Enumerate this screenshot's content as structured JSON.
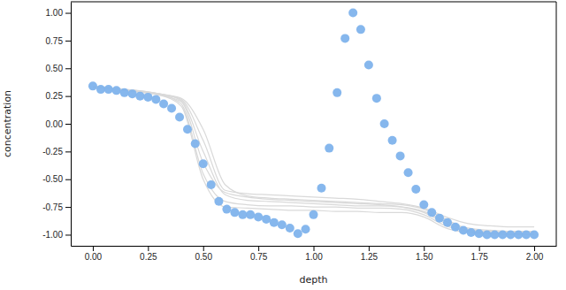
{
  "chart_data": {
    "type": "scatter",
    "x_label": "depth",
    "y_label": "concentration",
    "xlim": [
      -0.1,
      2.1
    ],
    "ylim": [
      -1.1,
      1.1
    ],
    "xticks": [
      {
        "value": 0,
        "label": "0.00"
      },
      {
        "value": 0.25,
        "label": "0.25"
      },
      {
        "value": 0.5,
        "label": "0.50"
      },
      {
        "value": 0.75,
        "label": "0.75"
      },
      {
        "value": 1,
        "label": "1.00"
      },
      {
        "value": 1.25,
        "label": "1.25"
      },
      {
        "value": 1.5,
        "label": "1.50"
      },
      {
        "value": 1.75,
        "label": "1.75"
      },
      {
        "value": 2,
        "label": "2.00"
      }
    ],
    "yticks": [
      {
        "value": -1,
        "label": "-1.00"
      },
      {
        "value": -0.75,
        "label": "-0.75"
      },
      {
        "value": -0.5,
        "label": "-0.50"
      },
      {
        "value": -0.25,
        "label": "-0.25"
      },
      {
        "value": 0,
        "label": "0.00"
      },
      {
        "value": 0.25,
        "label": "0.25"
      },
      {
        "value": 0.5,
        "label": "0.50"
      },
      {
        "value": 0.75,
        "label": "0.75"
      },
      {
        "value": 1,
        "label": "1.00"
      }
    ],
    "grid": false,
    "series": [
      {
        "type": "line",
        "line_style": "solid",
        "color": "#d9d9d9",
        "x": [
          0,
          0.1,
          0.2,
          0.3,
          0.4,
          0.5,
          0.6,
          0.7,
          0.8,
          0.9,
          1.0,
          1.1,
          1.2,
          1.3,
          1.4,
          1.5,
          1.6,
          1.7,
          1.8,
          1.9,
          2.0
        ],
        "values": [
          0.33,
          0.31,
          0.29,
          0.26,
          0.2,
          -0.35,
          -0.62,
          -0.66,
          -0.68,
          -0.69,
          -0.7,
          -0.71,
          -0.72,
          -0.73,
          -0.75,
          -0.8,
          -0.9,
          -0.96,
          -0.98,
          -0.99,
          -1.0
        ]
      },
      {
        "type": "line",
        "line_style": "solid",
        "color": "#d9d9d9",
        "x": [
          0,
          0.1,
          0.2,
          0.3,
          0.4,
          0.5,
          0.6,
          0.7,
          0.8,
          0.9,
          1.0,
          1.1,
          1.2,
          1.3,
          1.4,
          1.5,
          1.6,
          1.7,
          1.8,
          1.9,
          2.0
        ],
        "values": [
          0.33,
          0.31,
          0.29,
          0.27,
          0.23,
          -0.05,
          -0.55,
          -0.65,
          -0.67,
          -0.68,
          -0.69,
          -0.7,
          -0.71,
          -0.72,
          -0.73,
          -0.77,
          -0.86,
          -0.95,
          -0.97,
          -0.98,
          -0.98
        ]
      },
      {
        "type": "line",
        "line_style": "solid",
        "color": "#d9d9d9",
        "x": [
          0,
          0.1,
          0.2,
          0.3,
          0.4,
          0.5,
          0.6,
          0.7,
          0.8,
          0.9,
          1.0,
          1.1,
          1.2,
          1.3,
          1.4,
          1.5,
          1.6,
          1.7,
          1.8,
          1.9,
          2.0
        ],
        "values": [
          0.34,
          0.32,
          0.3,
          0.27,
          0.18,
          -0.45,
          -0.7,
          -0.73,
          -0.74,
          -0.74,
          -0.75,
          -0.75,
          -0.76,
          -0.76,
          -0.77,
          -0.82,
          -0.92,
          -0.97,
          -0.99,
          -1.0,
          -1.0
        ]
      },
      {
        "type": "line",
        "line_style": "solid",
        "color": "#d9d9d9",
        "x": [
          0,
          0.1,
          0.2,
          0.3,
          0.4,
          0.5,
          0.6,
          0.7,
          0.8,
          0.9,
          1.0,
          1.1,
          1.2,
          1.3,
          1.4,
          1.5,
          1.6,
          1.7,
          1.8,
          1.9,
          2.0
        ],
        "values": [
          0.33,
          0.31,
          0.29,
          0.27,
          0.22,
          -0.15,
          -0.6,
          -0.63,
          -0.64,
          -0.65,
          -0.66,
          -0.67,
          -0.68,
          -0.7,
          -0.72,
          -0.76,
          -0.84,
          -0.9,
          -0.92,
          -0.93,
          -0.93
        ]
      },
      {
        "type": "line",
        "line_style": "solid",
        "color": "#d9d9d9",
        "x": [
          0,
          0.1,
          0.2,
          0.3,
          0.4,
          0.5,
          0.6,
          0.7,
          0.8,
          0.9,
          1.0,
          1.1,
          1.2,
          1.3,
          1.4,
          1.5,
          1.6,
          1.7,
          1.8,
          1.9,
          2.0
        ],
        "values": [
          0.34,
          0.32,
          0.29,
          0.26,
          0.16,
          -0.5,
          -0.75,
          -0.76,
          -0.77,
          -0.78,
          -0.78,
          -0.79,
          -0.79,
          -0.8,
          -0.8,
          -0.84,
          -0.94,
          -0.98,
          -0.99,
          -1.0,
          -1.0
        ]
      },
      {
        "type": "line",
        "line_style": "solid",
        "color": "#d9d9d9",
        "x": [
          0,
          0.1,
          0.2,
          0.3,
          0.4,
          0.5,
          0.6,
          0.7,
          0.8,
          0.9,
          1.0,
          1.1,
          1.2,
          1.3,
          1.4,
          1.5,
          1.6,
          1.7,
          1.8,
          1.9,
          2.0
        ],
        "values": [
          0.33,
          0.31,
          0.3,
          0.27,
          0.21,
          -0.25,
          -0.64,
          -0.69,
          -0.7,
          -0.71,
          -0.72,
          -0.73,
          -0.74,
          -0.74,
          -0.75,
          -0.79,
          -0.88,
          -0.94,
          -0.96,
          -0.97,
          -0.97
        ]
      },
      {
        "type": "scatter",
        "marker": "circle",
        "color": "#7fb3ec",
        "x": [
          0,
          0.036,
          0.071,
          0.107,
          0.143,
          0.179,
          0.214,
          0.25,
          0.286,
          0.321,
          0.357,
          0.393,
          0.429,
          0.464,
          0.5,
          0.536,
          0.571,
          0.607,
          0.643,
          0.679,
          0.714,
          0.75,
          0.786,
          0.821,
          0.857,
          0.893,
          0.929,
          0.964,
          1.0,
          1.036,
          1.071,
          1.107,
          1.143,
          1.179,
          1.214,
          1.25,
          1.286,
          1.321,
          1.357,
          1.393,
          1.429,
          1.464,
          1.5,
          1.536,
          1.571,
          1.607,
          1.643,
          1.679,
          1.714,
          1.75,
          1.786,
          1.821,
          1.857,
          1.893,
          1.929,
          1.964,
          2.0
        ],
        "values": [
          0.34,
          0.31,
          0.31,
          0.3,
          0.28,
          0.27,
          0.25,
          0.24,
          0.22,
          0.18,
          0.14,
          0.06,
          -0.05,
          -0.18,
          -0.36,
          -0.55,
          -0.7,
          -0.77,
          -0.8,
          -0.82,
          -0.82,
          -0.84,
          -0.86,
          -0.89,
          -0.91,
          -0.94,
          -0.99,
          -0.95,
          -0.82,
          -0.58,
          -0.22,
          0.28,
          0.77,
          1.0,
          0.85,
          0.53,
          0.23,
          0.0,
          -0.15,
          -0.29,
          -0.44,
          -0.59,
          -0.73,
          -0.8,
          -0.85,
          -0.89,
          -0.93,
          -0.96,
          -0.98,
          -0.99,
          -1.0,
          -1.0,
          -1.0,
          -1.0,
          -1.0,
          -1.0,
          -1.0
        ]
      }
    ]
  }
}
